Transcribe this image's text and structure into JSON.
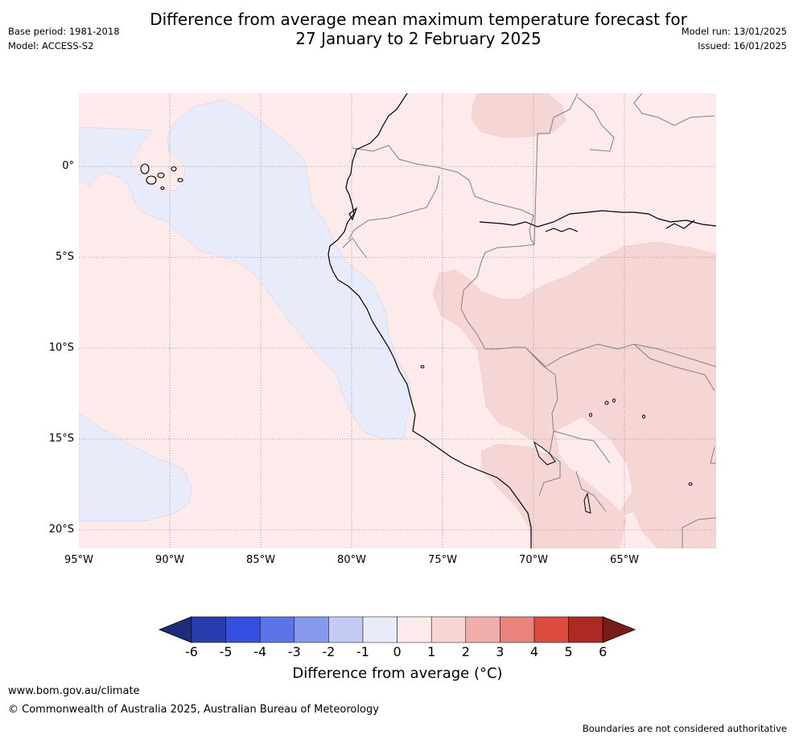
{
  "header": {
    "title_line1": "Difference from average mean maximum temperature forecast for",
    "title_line2": "27 January to 2 February 2025",
    "base_period": "Base period: 1981-2018",
    "model": "Model: ACCESS-S2",
    "model_run": "Model run: 13/01/2025",
    "issued": "Issued: 16/01/2025"
  },
  "map": {
    "region": "Western South America and eastern Pacific",
    "lat_labels": [
      "0°",
      "5°S",
      "10°S",
      "15°S",
      "20°S"
    ],
    "lon_labels": [
      "95°W",
      "90°W",
      "85°W",
      "80°W",
      "75°W",
      "70°W",
      "65°W"
    ],
    "colors": {
      "anomaly_-1_0": "#e8ebfa",
      "anomaly_0_1": "#fcebea",
      "anomaly_1_2": "#f6d6d4",
      "coastline": "#000000",
      "borders": "#808080",
      "gridlines": "#888888"
    }
  },
  "colorbar": {
    "title": "Difference from average (°C)",
    "ticks": [
      "-6",
      "-5",
      "-4",
      "-3",
      "-2",
      "-1",
      "0",
      "1",
      "2",
      "3",
      "4",
      "5",
      "6"
    ],
    "colors": [
      "#1f2c7a",
      "#2a3db0",
      "#3350e0",
      "#5b74e8",
      "#8799ec",
      "#c3caf4",
      "#e8ebfa",
      "#fcebea",
      "#f6d6d4",
      "#f0aeaa",
      "#e8847c",
      "#db4b3e",
      "#ad2a22",
      "#7a1c17"
    ]
  },
  "footer": {
    "url": "www.bom.gov.au/climate",
    "copyright": "© Commonwealth of Australia 2025, Australian Bureau of Meteorology",
    "note": "Boundaries are not considered authoritative"
  }
}
